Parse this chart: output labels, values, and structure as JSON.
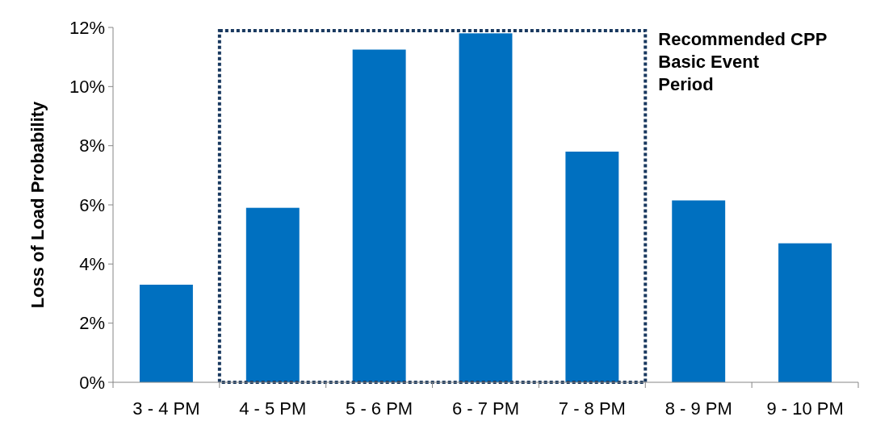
{
  "chart_data": {
    "type": "bar",
    "ylabel": "Loss of Load Probability",
    "categories": [
      "3 - 4 PM",
      "4 - 5 PM",
      "5 - 6 PM",
      "6 - 7 PM",
      "7 - 8 PM",
      "8 - 9 PM",
      "9 - 10 PM"
    ],
    "values": [
      3.3,
      5.9,
      11.25,
      11.8,
      7.8,
      6.15,
      4.7
    ],
    "color": "#0070c0",
    "ylim": [
      0,
      12
    ],
    "yticks": [
      {
        "value": 0,
        "label": "0%"
      },
      {
        "value": 2,
        "label": "2%"
      },
      {
        "value": 4,
        "label": "4%"
      },
      {
        "value": 6,
        "label": "6%"
      },
      {
        "value": 8,
        "label": "8%"
      },
      {
        "value": 10,
        "label": "10%"
      },
      {
        "value": 12,
        "label": "12%"
      }
    ],
    "annotations": [
      "Recommended CPP Basic Event Period"
    ],
    "grid": false
  }
}
